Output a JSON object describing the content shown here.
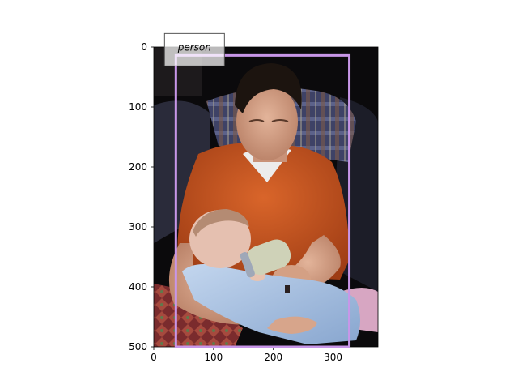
{
  "image_axes": {
    "x_ticks": [
      "0",
      "100",
      "200",
      "300"
    ],
    "y_ticks": [
      "0",
      "100",
      "200",
      "300",
      "400",
      "500"
    ],
    "xlim": [
      0,
      375
    ],
    "ylim": [
      500,
      0
    ]
  },
  "detections": [
    {
      "label": "person",
      "box": {
        "x1": 37,
        "y1": 14,
        "x2": 327,
        "y2": 500
      },
      "color": "#c896e8"
    }
  ],
  "scene_colors": {
    "background": "#0b0a0c",
    "shirt": "#c5521e",
    "skin": "#d6a489",
    "hair": "#1c140f",
    "onesie": "#a9c3e3",
    "couch": "#2a2b3a",
    "plaid": "#51547c",
    "quilt": "#7a2b2d",
    "bottle": "#cfd2b8"
  }
}
